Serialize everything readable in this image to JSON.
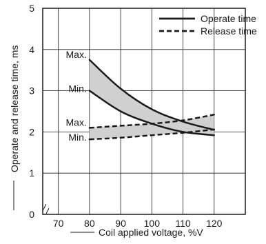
{
  "chart_data": {
    "type": "line",
    "xlabel": "Coil applied voltage, %V",
    "ylabel": "Operate and release time, ms",
    "x_ticks": [
      "70",
      "80",
      "90",
      "100",
      "110",
      "120"
    ],
    "y_ticks": [
      "0",
      "1",
      "2",
      "3",
      "4",
      "5"
    ],
    "xlim": [
      65,
      130
    ],
    "ylim": [
      0,
      5
    ],
    "grid": true,
    "legend_position": "top-right",
    "band_labels": {
      "operate_max": "Max.",
      "operate_min": "Min.",
      "release_max": "Max.",
      "release_min": "Min."
    },
    "series": [
      {
        "name": "Operate time",
        "style": "solid",
        "bound": "max",
        "x": [
          80,
          90,
          100,
          110,
          120
        ],
        "y": [
          3.75,
          3.05,
          2.55,
          2.25,
          2.05
        ]
      },
      {
        "name": "Operate time",
        "style": "solid",
        "bound": "min",
        "x": [
          80,
          90,
          100,
          110,
          120
        ],
        "y": [
          3.0,
          2.5,
          2.2,
          2.0,
          1.92
        ]
      },
      {
        "name": "Release time",
        "style": "dashed",
        "bound": "max",
        "x": [
          80,
          90,
          100,
          110,
          120
        ],
        "y": [
          2.1,
          2.15,
          2.2,
          2.28,
          2.42
        ]
      },
      {
        "name": "Release time",
        "style": "dashed",
        "bound": "min",
        "x": [
          80,
          90,
          100,
          110,
          120
        ],
        "y": [
          1.82,
          1.86,
          1.92,
          1.98,
          2.06
        ]
      }
    ],
    "legend": [
      {
        "label": "Operate time",
        "style": "solid"
      },
      {
        "label": "Release time",
        "style": "dashed"
      }
    ]
  }
}
